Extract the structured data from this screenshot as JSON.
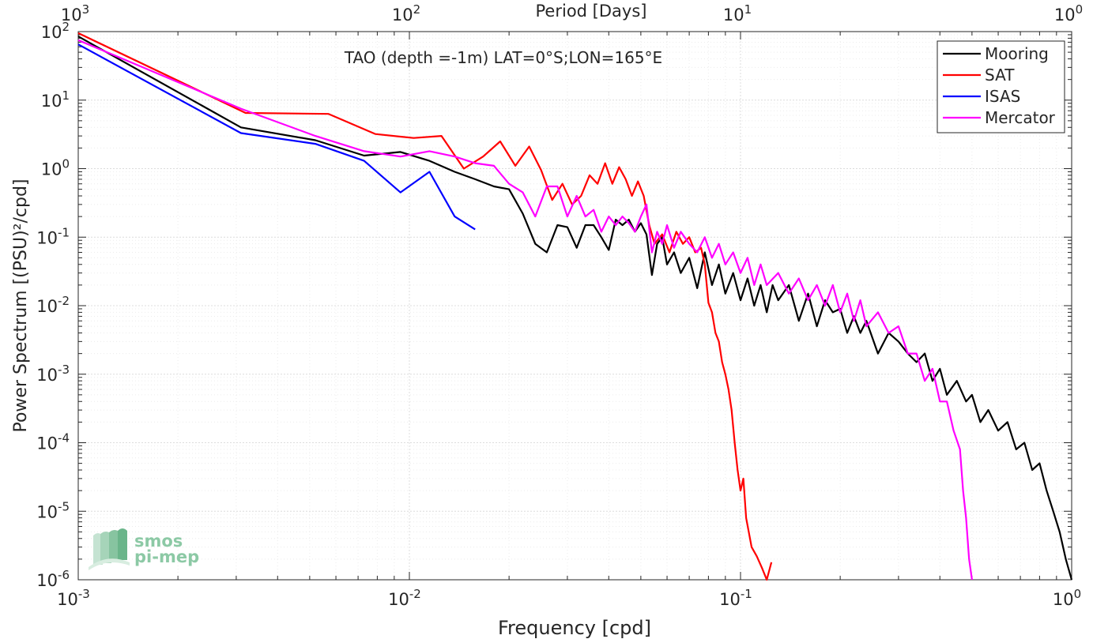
{
  "chart_data": {
    "type": "line",
    "title": "TAO (depth =-1m) LAT=0°S;LON=165°E",
    "xlabel": "Frequency [cpd]",
    "ylabel": "Power Spectrum [(PSU)²/cpd]",
    "x2label": "Period [Days]",
    "xscale": "log",
    "yscale": "log",
    "xlim": [
      0.001,
      1
    ],
    "ylim": [
      1e-06,
      100
    ],
    "grid": true,
    "legend_position": "top-right",
    "x_ticks": [
      {
        "base": "10",
        "exp": "-3"
      },
      {
        "base": "10",
        "exp": "-2"
      },
      {
        "base": "10",
        "exp": "-1"
      },
      {
        "base": "10",
        "exp": "0"
      }
    ],
    "x2_ticks": [
      {
        "base": "10",
        "exp": "3"
      },
      {
        "base": "10",
        "exp": "2"
      },
      {
        "base": "10",
        "exp": "1"
      },
      {
        "base": "10",
        "exp": "0"
      }
    ],
    "y_ticks": [
      {
        "base": "10",
        "exp": "2"
      },
      {
        "base": "10",
        "exp": "1"
      },
      {
        "base": "10",
        "exp": "0"
      },
      {
        "base": "10",
        "exp": "-1"
      },
      {
        "base": "10",
        "exp": "-2"
      },
      {
        "base": "10",
        "exp": "-3"
      },
      {
        "base": "10",
        "exp": "-4"
      },
      {
        "base": "10",
        "exp": "-5"
      },
      {
        "base": "10",
        "exp": "-6"
      }
    ],
    "series": [
      {
        "name": "Mooring",
        "color": "#000000",
        "points": [
          [
            0.001,
            85
          ],
          [
            0.0031,
            4
          ],
          [
            0.0052,
            2.6
          ],
          [
            0.0073,
            1.55
          ],
          [
            0.0094,
            1.75
          ],
          [
            0.0115,
            1.3
          ],
          [
            0.0137,
            0.9
          ],
          [
            0.0158,
            0.7
          ],
          [
            0.018,
            0.55
          ],
          [
            0.02,
            0.5
          ],
          [
            0.022,
            0.22
          ],
          [
            0.024,
            0.08
          ],
          [
            0.026,
            0.06
          ],
          [
            0.028,
            0.15
          ],
          [
            0.03,
            0.14
          ],
          [
            0.032,
            0.07
          ],
          [
            0.034,
            0.15
          ],
          [
            0.036,
            0.15
          ],
          [
            0.038,
            0.1
          ],
          [
            0.04,
            0.065
          ],
          [
            0.042,
            0.18
          ],
          [
            0.044,
            0.15
          ],
          [
            0.046,
            0.18
          ],
          [
            0.048,
            0.12
          ],
          [
            0.05,
            0.16
          ],
          [
            0.052,
            0.11
          ],
          [
            0.054,
            0.028
          ],
          [
            0.056,
            0.08
          ],
          [
            0.058,
            0.1
          ],
          [
            0.06,
            0.04
          ],
          [
            0.063,
            0.06
          ],
          [
            0.066,
            0.03
          ],
          [
            0.07,
            0.05
          ],
          [
            0.074,
            0.018
          ],
          [
            0.078,
            0.06
          ],
          [
            0.082,
            0.02
          ],
          [
            0.086,
            0.04
          ],
          [
            0.09,
            0.015
          ],
          [
            0.095,
            0.03
          ],
          [
            0.1,
            0.012
          ],
          [
            0.105,
            0.025
          ],
          [
            0.11,
            0.01
          ],
          [
            0.115,
            0.02
          ],
          [
            0.12,
            0.008
          ],
          [
            0.125,
            0.02
          ],
          [
            0.13,
            0.012
          ],
          [
            0.14,
            0.02
          ],
          [
            0.15,
            0.006
          ],
          [
            0.16,
            0.015
          ],
          [
            0.17,
            0.005
          ],
          [
            0.18,
            0.012
          ],
          [
            0.19,
            0.008
          ],
          [
            0.2,
            0.009
          ],
          [
            0.21,
            0.004
          ],
          [
            0.22,
            0.007
          ],
          [
            0.23,
            0.004
          ],
          [
            0.24,
            0.006
          ],
          [
            0.26,
            0.002
          ],
          [
            0.28,
            0.004
          ],
          [
            0.3,
            0.003
          ],
          [
            0.32,
            0.002
          ],
          [
            0.34,
            0.0015
          ],
          [
            0.36,
            0.002
          ],
          [
            0.38,
            0.0008
          ],
          [
            0.4,
            0.0012
          ],
          [
            0.42,
            0.0005
          ],
          [
            0.45,
            0.0008
          ],
          [
            0.48,
            0.0004
          ],
          [
            0.5,
            0.0005
          ],
          [
            0.53,
            0.0002
          ],
          [
            0.56,
            0.0003
          ],
          [
            0.6,
            0.00015
          ],
          [
            0.64,
            0.0002
          ],
          [
            0.68,
            8e-05
          ],
          [
            0.72,
            0.0001
          ],
          [
            0.76,
            4e-05
          ],
          [
            0.8,
            5e-05
          ],
          [
            0.84,
            2e-05
          ],
          [
            0.88,
            1e-05
          ],
          [
            0.92,
            5e-06
          ],
          [
            0.96,
            2e-06
          ],
          [
            1.0,
            1e-06
          ]
        ]
      },
      {
        "name": "SAT",
        "color": "#ff0000",
        "points": [
          [
            0.001,
            95
          ],
          [
            0.0032,
            6.5
          ],
          [
            0.0057,
            6.3
          ],
          [
            0.0079,
            3.2
          ],
          [
            0.0103,
            2.8
          ],
          [
            0.0125,
            3
          ],
          [
            0.0146,
            1
          ],
          [
            0.0167,
            1.5
          ],
          [
            0.0188,
            2.5
          ],
          [
            0.0209,
            1.1
          ],
          [
            0.023,
            2.1
          ],
          [
            0.025,
            0.95
          ],
          [
            0.027,
            0.35
          ],
          [
            0.029,
            0.6
          ],
          [
            0.031,
            0.3
          ],
          [
            0.033,
            0.4
          ],
          [
            0.035,
            0.8
          ],
          [
            0.037,
            0.6
          ],
          [
            0.039,
            1.2
          ],
          [
            0.041,
            0.6
          ],
          [
            0.043,
            1.05
          ],
          [
            0.045,
            0.7
          ],
          [
            0.047,
            0.4
          ],
          [
            0.049,
            0.65
          ],
          [
            0.051,
            0.4
          ],
          [
            0.053,
            0.15
          ],
          [
            0.055,
            0.08
          ],
          [
            0.058,
            0.11
          ],
          [
            0.061,
            0.06
          ],
          [
            0.064,
            0.12
          ],
          [
            0.067,
            0.08
          ],
          [
            0.07,
            0.1
          ],
          [
            0.073,
            0.06
          ],
          [
            0.076,
            0.07
          ],
          [
            0.078,
            0.04
          ],
          [
            0.08,
            0.011
          ],
          [
            0.082,
            0.008
          ],
          [
            0.084,
            0.004
          ],
          [
            0.086,
            0.003
          ],
          [
            0.088,
            0.0015
          ],
          [
            0.09,
            0.001
          ],
          [
            0.092,
            0.0006
          ],
          [
            0.094,
            0.0003
          ],
          [
            0.096,
            0.0001
          ],
          [
            0.098,
            4e-05
          ],
          [
            0.1,
            2e-05
          ],
          [
            0.102,
            3e-05
          ],
          [
            0.104,
            8e-06
          ],
          [
            0.108,
            3e-06
          ],
          [
            0.112,
            2.2e-06
          ],
          [
            0.116,
            1.5e-06
          ],
          [
            0.12,
            1e-06
          ],
          [
            0.124,
            1.8e-06
          ]
        ]
      },
      {
        "name": "ISAS",
        "color": "#0000ff",
        "points": [
          [
            0.001,
            65
          ],
          [
            0.0031,
            3.3
          ],
          [
            0.0052,
            2.3
          ],
          [
            0.0073,
            1.3
          ],
          [
            0.0094,
            0.45
          ],
          [
            0.0115,
            0.9
          ],
          [
            0.0137,
            0.2
          ],
          [
            0.0158,
            0.13
          ]
        ]
      },
      {
        "name": "Mercator",
        "color": "#ff00ff",
        "points": [
          [
            0.001,
            75
          ],
          [
            0.0031,
            7.5
          ],
          [
            0.0052,
            3
          ],
          [
            0.0073,
            1.8
          ],
          [
            0.0094,
            1.5
          ],
          [
            0.0115,
            1.8
          ],
          [
            0.0137,
            1.5
          ],
          [
            0.0158,
            1.2
          ],
          [
            0.018,
            1.1
          ],
          [
            0.02,
            0.6
          ],
          [
            0.022,
            0.45
          ],
          [
            0.024,
            0.2
          ],
          [
            0.026,
            0.55
          ],
          [
            0.028,
            0.55
          ],
          [
            0.03,
            0.2
          ],
          [
            0.032,
            0.4
          ],
          [
            0.034,
            0.2
          ],
          [
            0.036,
            0.25
          ],
          [
            0.038,
            0.12
          ],
          [
            0.04,
            0.2
          ],
          [
            0.042,
            0.15
          ],
          [
            0.044,
            0.2
          ],
          [
            0.046,
            0.16
          ],
          [
            0.048,
            0.12
          ],
          [
            0.05,
            0.2
          ],
          [
            0.052,
            0.3
          ],
          [
            0.054,
            0.06
          ],
          [
            0.056,
            0.12
          ],
          [
            0.058,
            0.08
          ],
          [
            0.06,
            0.15
          ],
          [
            0.063,
            0.07
          ],
          [
            0.066,
            0.12
          ],
          [
            0.07,
            0.08
          ],
          [
            0.074,
            0.06
          ],
          [
            0.078,
            0.1
          ],
          [
            0.082,
            0.05
          ],
          [
            0.086,
            0.08
          ],
          [
            0.09,
            0.04
          ],
          [
            0.095,
            0.06
          ],
          [
            0.1,
            0.03
          ],
          [
            0.105,
            0.05
          ],
          [
            0.11,
            0.02
          ],
          [
            0.115,
            0.04
          ],
          [
            0.12,
            0.02
          ],
          [
            0.13,
            0.03
          ],
          [
            0.14,
            0.015
          ],
          [
            0.15,
            0.025
          ],
          [
            0.16,
            0.012
          ],
          [
            0.17,
            0.02
          ],
          [
            0.18,
            0.01
          ],
          [
            0.19,
            0.02
          ],
          [
            0.2,
            0.008
          ],
          [
            0.21,
            0.015
          ],
          [
            0.22,
            0.006
          ],
          [
            0.23,
            0.012
          ],
          [
            0.24,
            0.005
          ],
          [
            0.26,
            0.008
          ],
          [
            0.28,
            0.004
          ],
          [
            0.3,
            0.005
          ],
          [
            0.32,
            0.002
          ],
          [
            0.34,
            0.002
          ],
          [
            0.36,
            0.0008
          ],
          [
            0.38,
            0.0012
          ],
          [
            0.4,
            0.0004
          ],
          [
            0.42,
            0.0004
          ],
          [
            0.44,
            0.00015
          ],
          [
            0.46,
            8e-05
          ],
          [
            0.47,
            2e-05
          ],
          [
            0.48,
            8e-06
          ],
          [
            0.49,
            2e-06
          ],
          [
            0.5,
            1e-06
          ]
        ]
      }
    ]
  },
  "logo": {
    "line1": "smos",
    "line2": "pi-mep"
  }
}
